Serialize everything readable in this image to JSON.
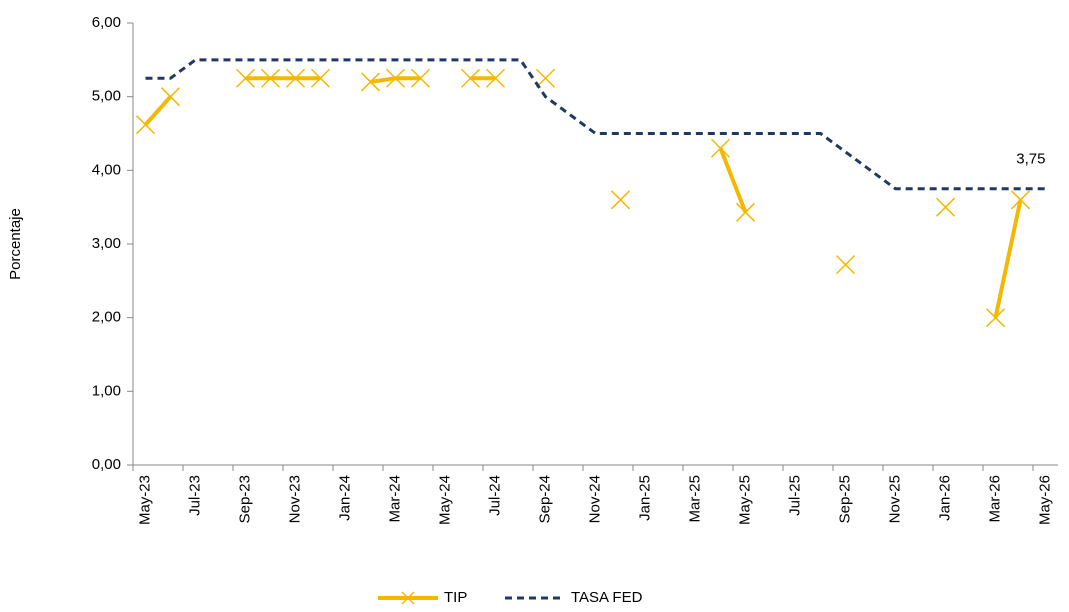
{
  "chart_data": {
    "type": "line",
    "y_label": "Porcentaje",
    "categories": [
      "May-23",
      null,
      "Jul-23",
      null,
      "Sep-23",
      null,
      "Nov-23",
      null,
      "Jan-24",
      null,
      "Mar-24",
      null,
      "May-24",
      null,
      "Jul-24",
      null,
      "Sep-24",
      null,
      "Nov-24",
      null,
      "Jan-25",
      null,
      "Mar-25",
      null,
      "May-25",
      null,
      "Jul-25",
      null,
      "Sep-25",
      null,
      "Nov-25",
      null,
      "Jan-26",
      null,
      "Mar-26",
      null,
      "May-26"
    ],
    "series": [
      {
        "name": "TIP",
        "color": "#f5b800",
        "values": [
          4.62,
          5.0,
          null,
          null,
          5.25,
          5.25,
          5.25,
          5.25,
          null,
          5.2,
          5.25,
          5.25,
          null,
          5.25,
          5.25,
          null,
          5.25,
          null,
          null,
          3.6,
          null,
          null,
          null,
          4.3,
          3.43,
          null,
          null,
          null,
          2.72,
          null,
          null,
          null,
          3.5,
          null,
          2.0,
          3.6,
          null
        ]
      },
      {
        "name": "TASA FED",
        "color": "#1f3864",
        "dashed": true,
        "values": [
          5.25,
          5.25,
          5.5,
          5.5,
          5.5,
          5.5,
          5.5,
          5.5,
          5.5,
          5.5,
          5.5,
          5.5,
          5.5,
          5.5,
          5.5,
          5.5,
          5.0,
          4.75,
          4.5,
          4.5,
          4.5,
          4.5,
          4.5,
          4.5,
          4.5,
          4.5,
          4.5,
          4.5,
          4.25,
          4.0,
          3.75,
          3.75,
          3.75,
          3.75,
          3.75,
          3.75,
          3.75
        ]
      }
    ],
    "annotations": [
      {
        "label": "3,75",
        "value": 3.75
      }
    ],
    "ylim": [
      0,
      6
    ],
    "yticks": [
      {
        "value": 0,
        "label": "0,00"
      },
      {
        "value": 1,
        "label": "1,00"
      },
      {
        "value": 2,
        "label": "2,00"
      },
      {
        "value": 3,
        "label": "3,00"
      },
      {
        "value": 4,
        "label": "4,00"
      },
      {
        "value": 5,
        "label": "5,00"
      },
      {
        "value": 6,
        "label": "6,00"
      }
    ],
    "legend": "bottom"
  }
}
